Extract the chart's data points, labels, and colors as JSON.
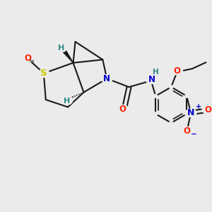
{
  "background_color": "#ebebeb",
  "bond_color": "#1a1a1a",
  "bond_width": 1.5,
  "figsize": [
    3.0,
    3.0
  ],
  "dpi": 100,
  "colors": {
    "S": "#cccc00",
    "O": "#ff2200",
    "N": "#0000cc",
    "H": "#2e8b8b",
    "C": "#1a1a1a",
    "bg": "#ebebeb"
  }
}
